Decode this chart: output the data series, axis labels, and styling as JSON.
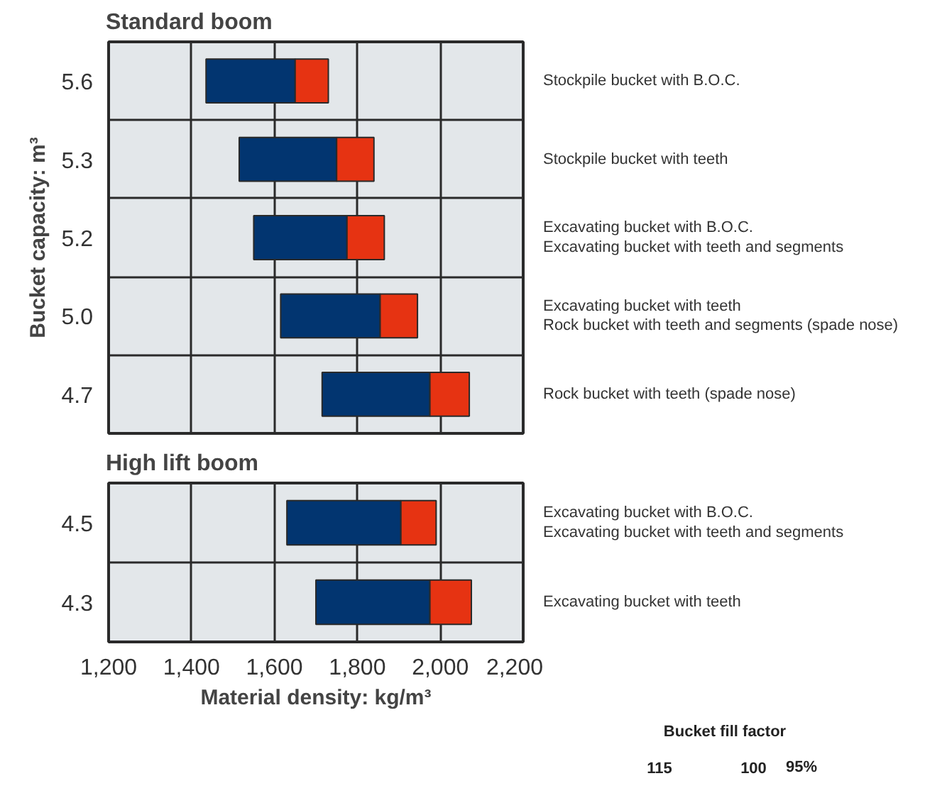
{
  "chart_data": [
    {
      "type": "bar",
      "orientation": "horizontal",
      "stacked": true,
      "title": "Standard boom",
      "ylabel": "Bucket capacity: m³",
      "categories": [
        "5.6",
        "5.3",
        "5.2",
        "5.0",
        "4.7"
      ],
      "series": [
        {
          "color": "#023570",
          "base": [
            1435,
            1515,
            1550,
            1615,
            1715
          ],
          "values": [
            215,
            235,
            225,
            240,
            260
          ]
        },
        {
          "color": "#e63312",
          "base": [
            1650,
            1750,
            1775,
            1855,
            1975
          ],
          "values": [
            80,
            90,
            90,
            90,
            95
          ]
        }
      ],
      "xlim": [
        1200,
        2200
      ],
      "xticks": [
        {
          "value": 1200,
          "label": null
        },
        {
          "value": 1400,
          "label": null
        },
        {
          "value": 1600,
          "label": null
        },
        {
          "value": 1800,
          "label": null
        },
        {
          "value": 2000,
          "label": null
        },
        {
          "value": 2200,
          "label": null
        }
      ],
      "tick_labels": "y",
      "grid": true,
      "annotations": [
        "Stockpile bucket with B.O.C.",
        "Stockpile bucket with teeth",
        "Excavating bucket with B.O.C.\nExcavating bucket with teeth and segments",
        "Excavating bucket with teeth\nRock bucket with teeth and segments (spade nose)",
        "Rock bucket with teeth (spade nose)"
      ]
    },
    {
      "type": "bar",
      "orientation": "horizontal",
      "stacked": true,
      "title": "High lift boom",
      "xlabel": "Material density: kg/m³",
      "categories": [
        "4.5",
        "4.3"
      ],
      "series": [
        {
          "color": "#023570",
          "base": [
            1630,
            1700
          ],
          "values": [
            275,
            275
          ]
        },
        {
          "color": "#e63312",
          "base": [
            1905,
            1975
          ],
          "values": [
            85,
            100
          ]
        }
      ],
      "xlim": [
        1200,
        2200
      ],
      "xticks": [
        {
          "value": 1200,
          "label": "1,200"
        },
        {
          "value": 1400,
          "label": "1,400"
        },
        {
          "value": 1600,
          "label": "1,600"
        },
        {
          "value": 1800,
          "label": "1,800"
        },
        {
          "value": 2000,
          "label": "2,000"
        },
        {
          "value": 2200,
          "label": "2,200"
        }
      ],
      "grid": true,
      "legend_title": "Bucket fill factor",
      "annotations": [
        "Excavating bucket with B.O.C.\nExcavating bucket with teeth and segments",
        "Excavating bucket with teeth",
        "115",
        "100",
        "95%"
      ]
    }
  ]
}
